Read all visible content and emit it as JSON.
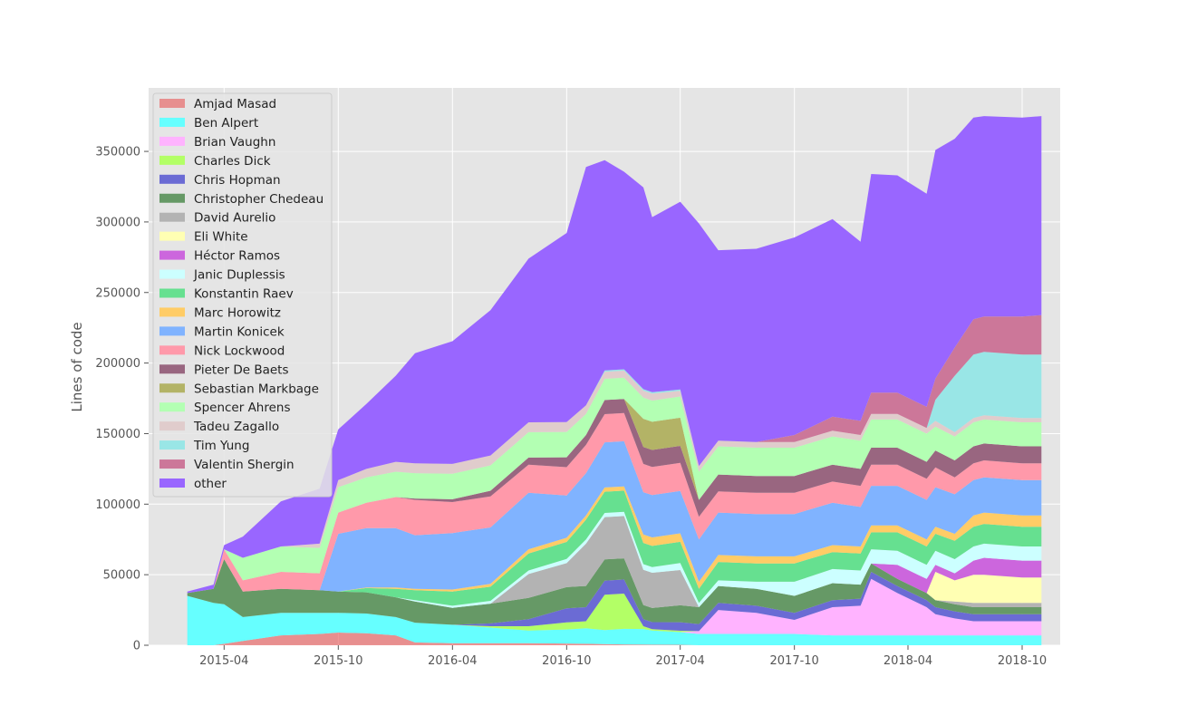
{
  "chart_data": {
    "type": "area",
    "stacked": true,
    "title": "",
    "xlabel": "",
    "ylabel": "Lines of code",
    "ylim": [
      0,
      395000
    ],
    "xlim": [
      "2014-12-01",
      "2018-12-01"
    ],
    "grid": true,
    "legend_position": "top-left",
    "x_ticks": [
      "2015-04",
      "2015-10",
      "2016-04",
      "2016-10",
      "2017-04",
      "2017-10",
      "2018-04",
      "2018-10"
    ],
    "y_ticks": [
      0,
      50000,
      100000,
      150000,
      200000,
      250000,
      300000,
      350000
    ],
    "y_tick_labels": [
      "0",
      "50000",
      "100000",
      "150000",
      "200000",
      "250000",
      "300000",
      "350000"
    ],
    "dates": [
      "2015-02-01",
      "2015-03-15",
      "2015-04-01",
      "2015-05-01",
      "2015-07-01",
      "2015-09-01",
      "2015-10-01",
      "2015-11-15",
      "2016-01-01",
      "2016-02-01",
      "2016-04-01",
      "2016-06-01",
      "2016-08-01",
      "2016-10-01",
      "2016-11-01",
      "2016-12-01",
      "2017-01-01",
      "2017-02-01",
      "2017-02-15",
      "2017-04-01",
      "2017-05-01",
      "2017-06-01",
      "2017-08-01",
      "2017-10-01",
      "2017-12-01",
      "2018-01-15",
      "2018-02-01",
      "2018-03-15",
      "2018-05-01",
      "2018-05-15",
      "2018-06-15",
      "2018-07-15",
      "2018-08-01",
      "2018-10-01",
      "2018-11-01"
    ],
    "series": [
      {
        "name": "Amjad Masad",
        "color": "#e8555599",
        "values": [
          0,
          0,
          1000,
          3000,
          7000,
          8000,
          9000,
          8500,
          7000,
          2000,
          1500,
          1500,
          1500,
          1200,
          1000,
          800,
          600,
          500,
          400,
          300,
          0,
          0,
          0,
          0,
          0,
          0,
          0,
          0,
          0,
          0,
          0,
          0,
          0,
          0,
          0
        ]
      },
      {
        "name": "Ben Alpert",
        "color": "#66ffff",
        "values": [
          35000,
          30000,
          28000,
          17000,
          16000,
          15000,
          14000,
          14000,
          13000,
          14000,
          13000,
          11000,
          9000,
          10000,
          11000,
          10000,
          11000,
          11000,
          10000,
          9000,
          8000,
          8000,
          8000,
          8000,
          7000,
          7000,
          7000,
          7000,
          7000,
          7000,
          7000,
          7000,
          7000,
          7000,
          7000
        ]
      },
      {
        "name": "Brian Vaughn",
        "color": "#ffb3ff",
        "values": [
          0,
          0,
          0,
          0,
          0,
          0,
          0,
          0,
          0,
          0,
          0,
          0,
          0,
          0,
          0,
          0,
          0,
          0,
          0,
          0,
          2000,
          17000,
          15000,
          10000,
          20000,
          21000,
          40000,
          30000,
          20000,
          15000,
          12000,
          10000,
          10000,
          10000,
          10000
        ]
      },
      {
        "name": "Charles Dick",
        "color": "#b3ff66",
        "values": [
          0,
          0,
          0,
          0,
          0,
          0,
          0,
          0,
          0,
          0,
          0,
          1000,
          3000,
          5000,
          5000,
          25000,
          25000,
          2000,
          1000,
          1000,
          0,
          0,
          0,
          0,
          0,
          0,
          0,
          0,
          0,
          0,
          0,
          0,
          0,
          0,
          0
        ]
      },
      {
        "name": "Chris Hopman",
        "color": "#6b6bd4",
        "values": [
          0,
          0,
          0,
          0,
          0,
          0,
          0,
          0,
          0,
          0,
          0,
          2000,
          5000,
          10000,
          10000,
          10000,
          10000,
          5000,
          5000,
          6000,
          5000,
          5000,
          5000,
          5000,
          5000,
          5000,
          5000,
          5000,
          5000,
          5000,
          5000,
          5000,
          5000,
          5000,
          5000
        ]
      },
      {
        "name": "Christopher Chedeau",
        "color": "#669966",
        "values": [
          2000,
          10000,
          32000,
          18000,
          17000,
          16000,
          15000,
          15000,
          14000,
          15000,
          12000,
          14000,
          15000,
          15000,
          15000,
          15000,
          15000,
          10000,
          10000,
          12000,
          12000,
          12000,
          12000,
          12000,
          12000,
          10000,
          6000,
          5000,
          5000,
          5000,
          5000,
          5000,
          5000,
          5000,
          5000
        ]
      },
      {
        "name": "David Aurelio",
        "color": "#b3b3b3",
        "values": [
          0,
          0,
          0,
          0,
          0,
          0,
          0,
          0,
          0,
          0,
          0,
          0,
          17000,
          17000,
          30000,
          30000,
          30000,
          25000,
          25000,
          25000,
          0,
          0,
          0,
          0,
          0,
          0,
          0,
          0,
          0,
          0,
          2000,
          3000,
          3000,
          3000,
          3000
        ]
      },
      {
        "name": "Eli White",
        "color": "#ffffb3",
        "values": [
          0,
          0,
          0,
          0,
          0,
          0,
          0,
          0,
          0,
          0,
          0,
          0,
          0,
          0,
          0,
          0,
          0,
          0,
          0,
          0,
          0,
          0,
          0,
          0,
          0,
          0,
          0,
          0,
          0,
          20000,
          15000,
          20000,
          20000,
          18000,
          18000
        ]
      },
      {
        "name": "Héctor Ramos",
        "color": "#cc66dd",
        "values": [
          0,
          0,
          0,
          0,
          0,
          0,
          0,
          0,
          0,
          0,
          0,
          0,
          0,
          0,
          0,
          0,
          0,
          0,
          0,
          0,
          0,
          0,
          0,
          0,
          0,
          0,
          0,
          10000,
          10000,
          5000,
          5000,
          10000,
          12000,
          12000,
          12000
        ]
      },
      {
        "name": "Janic Duplessis",
        "color": "#ccffff",
        "values": [
          0,
          0,
          0,
          0,
          0,
          0,
          0,
          0,
          0,
          1000,
          1500,
          2000,
          2500,
          3000,
          3000,
          3000,
          3000,
          4000,
          4000,
          5000,
          3000,
          4000,
          5000,
          10000,
          10000,
          10000,
          10000,
          10000,
          10000,
          10000,
          10000,
          10000,
          10000,
          10000,
          10000
        ]
      },
      {
        "name": "Konstantin Raev",
        "color": "#66e090",
        "values": [
          0,
          0,
          0,
          0,
          0,
          0,
          0,
          3000,
          6000,
          7000,
          10000,
          10000,
          12000,
          12000,
          14000,
          15000,
          15000,
          15000,
          15000,
          15000,
          10000,
          13000,
          13000,
          13000,
          12000,
          12000,
          12000,
          13000,
          13000,
          12000,
          13000,
          14000,
          14000,
          14000,
          14000
        ]
      },
      {
        "name": "Marc Horowitz",
        "color": "#ffcc66",
        "values": [
          0,
          0,
          0,
          0,
          0,
          0,
          0,
          500,
          1000,
          1000,
          1500,
          2000,
          3000,
          3000,
          3000,
          3000,
          3000,
          6000,
          6000,
          6000,
          5000,
          5000,
          5000,
          5000,
          5000,
          5000,
          5000,
          5000,
          5000,
          5000,
          5000,
          8000,
          8000,
          8000,
          8000
        ]
      },
      {
        "name": "Martin Konicek",
        "color": "#80b3ff",
        "values": [
          0,
          0,
          0,
          0,
          0,
          0,
          41000,
          42000,
          42000,
          38000,
          40000,
          40000,
          40000,
          30000,
          30000,
          32000,
          32000,
          30000,
          30000,
          30000,
          30000,
          30000,
          30000,
          30000,
          30000,
          28000,
          28000,
          28000,
          28000,
          28000,
          28000,
          25000,
          25000,
          25000,
          25000
        ]
      },
      {
        "name": "Nick Lockwood",
        "color": "#ff99aa",
        "values": [
          0,
          0,
          7000,
          8000,
          12000,
          12000,
          15000,
          18000,
          22000,
          25000,
          22000,
          22000,
          20000,
          20000,
          20000,
          20000,
          20000,
          20000,
          20000,
          20000,
          16000,
          15000,
          15000,
          15000,
          15000,
          15000,
          15000,
          15000,
          15000,
          14000,
          12000,
          12000,
          12000,
          12000,
          12000
        ]
      },
      {
        "name": "Pieter De Baets",
        "color": "#996680",
        "values": [
          0,
          0,
          0,
          0,
          0,
          0,
          0,
          0,
          0,
          1000,
          2000,
          4000,
          5000,
          7000,
          7000,
          10000,
          10000,
          12000,
          12000,
          12000,
          12000,
          12000,
          12000,
          12000,
          12000,
          12000,
          12000,
          12000,
          12000,
          12000,
          12000,
          12000,
          12000,
          12000,
          12000
        ]
      },
      {
        "name": "Sebastian Markbage",
        "color": "#b3b366",
        "values": [
          0,
          0,
          0,
          0,
          0,
          0,
          0,
          0,
          0,
          0,
          0,
          0,
          0,
          0,
          0,
          0,
          0,
          20000,
          20000,
          20000,
          0,
          0,
          0,
          0,
          0,
          0,
          0,
          0,
          0,
          0,
          0,
          0,
          0,
          0,
          0
        ]
      },
      {
        "name": "Spencer Ahrens",
        "color": "#b3ffb3",
        "values": [
          0,
          0,
          0,
          16000,
          18000,
          18000,
          18000,
          18000,
          18000,
          18000,
          18000,
          18000,
          18000,
          18000,
          15000,
          15000,
          15000,
          15000,
          15000,
          15000,
          20000,
          20000,
          20000,
          20000,
          20000,
          20000,
          20000,
          20000,
          20000,
          17000,
          17000,
          17000,
          17000,
          17000,
          17000
        ]
      },
      {
        "name": "Tadeu Zagallo",
        "color": "#e0cccc",
        "values": [
          0,
          0,
          0,
          0,
          0,
          3000,
          5000,
          6000,
          7000,
          7000,
          7000,
          7000,
          7000,
          7000,
          6000,
          5000,
          5000,
          5000,
          5000,
          4000,
          4000,
          4000,
          4000,
          4000,
          4000,
          4000,
          4000,
          4000,
          4000,
          4000,
          3000,
          3000,
          3000,
          3000,
          3000
        ]
      },
      {
        "name": "Tim Yung",
        "color": "#99e6e6",
        "values": [
          0,
          0,
          0,
          0,
          0,
          0,
          0,
          0,
          0,
          0,
          0,
          0,
          0,
          0,
          0,
          1000,
          1000,
          1000,
          1000,
          1000,
          0,
          0,
          0,
          0,
          0,
          0,
          0,
          0,
          0,
          15000,
          40000,
          45000,
          45000,
          45000,
          45000
        ]
      },
      {
        "name": "Valentin Shergin",
        "color": "#cc7799",
        "values": [
          0,
          0,
          0,
          0,
          0,
          0,
          0,
          0,
          0,
          0,
          0,
          0,
          0,
          0,
          0,
          0,
          0,
          0,
          0,
          0,
          0,
          0,
          0,
          5000,
          10000,
          10000,
          15000,
          15000,
          15000,
          15000,
          20000,
          25000,
          25000,
          27000,
          28000
        ]
      },
      {
        "name": "other",
        "color": "#9966ff",
        "values": [
          1000,
          3000,
          3000,
          15000,
          32000,
          39000,
          36000,
          46000,
          61000,
          78000,
          87000,
          103000,
          116000,
          134000,
          169000,
          149000,
          140000,
          143000,
          124000,
          133000,
          172000,
          135000,
          137000,
          140000,
          140000,
          127000,
          155000,
          154000,
          151000,
          162000,
          148000,
          143000,
          142000,
          141000,
          141000
        ]
      }
    ]
  }
}
